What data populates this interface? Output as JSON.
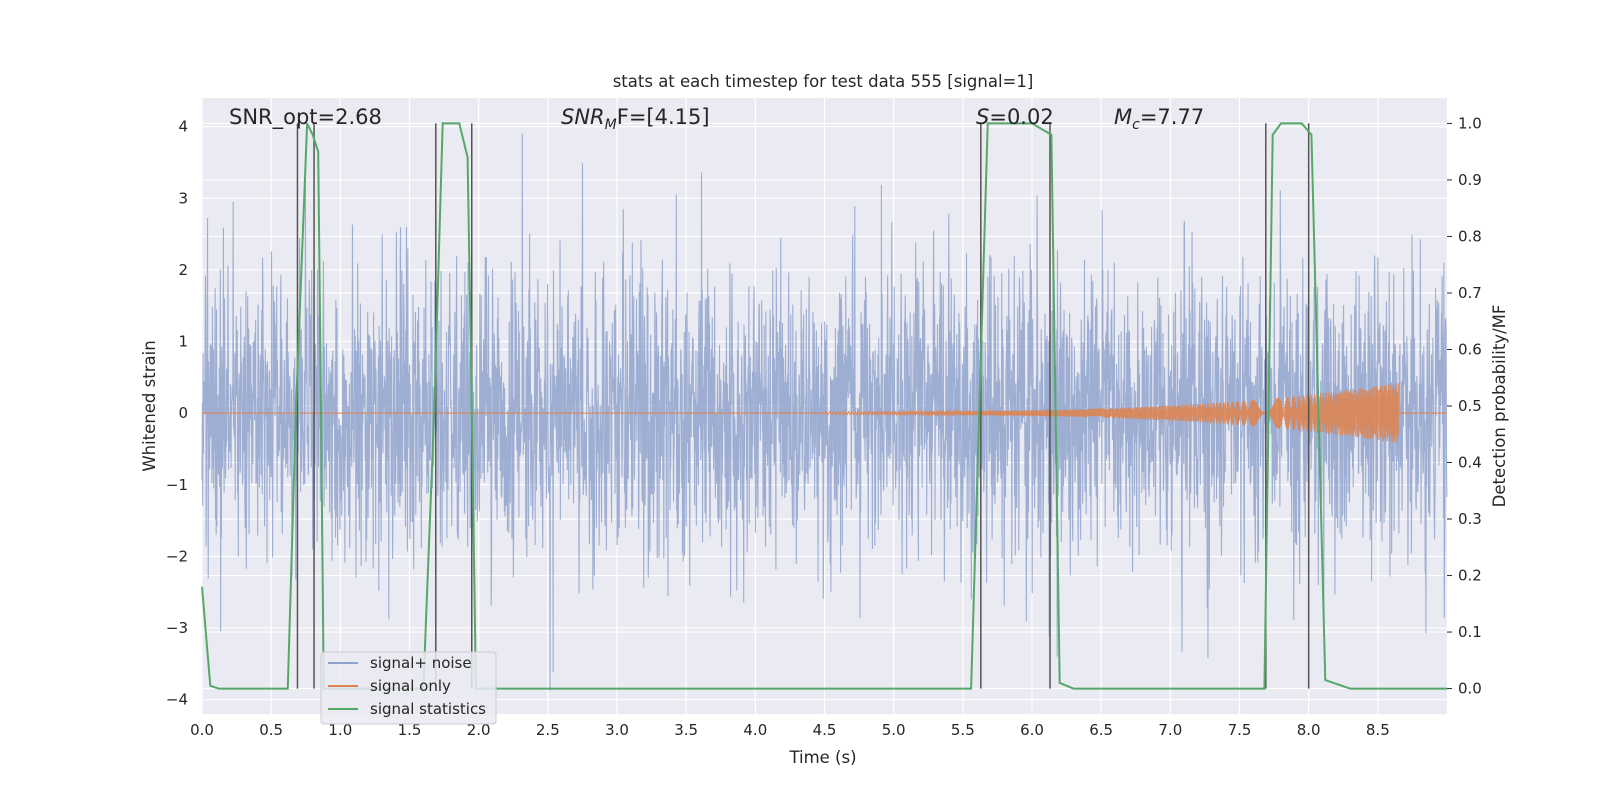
{
  "chart_data": {
    "type": "line",
    "title": "stats at each timestep for test data 555 [signal=1]",
    "xlabel": "Time (s)",
    "ylabel": "Whitened strain",
    "ylabel_right": "Detection probability/MF",
    "xlim": [
      0.0,
      9.0
    ],
    "ylim": [
      -4.2,
      4.4
    ],
    "ylim_right": [
      -0.045,
      1.045
    ],
    "x_ticks": [
      "0.0",
      "0.5",
      "1.0",
      "1.5",
      "2.0",
      "2.5",
      "3.0",
      "3.5",
      "4.0",
      "4.5",
      "5.0",
      "5.5",
      "6.0",
      "6.5",
      "7.0",
      "7.5",
      "8.0",
      "8.5"
    ],
    "y_ticks": [
      "4",
      "3",
      "2",
      "1",
      "0",
      "−1",
      "−2",
      "−3",
      "−4"
    ],
    "y_ticks_right": [
      "1.0",
      "0.9",
      "0.8",
      "0.7",
      "0.6",
      "0.5",
      "0.4",
      "0.3",
      "0.2",
      "0.1",
      "0.0"
    ],
    "grid": true,
    "legend_position": "lower-left",
    "annotations": {
      "snr_opt": "SNR_opt=2.68",
      "snr_mf_sym": "SNR",
      "snr_mf_sub": "M",
      "snr_mf_rest": "F=[4.15]",
      "s_sym": "S",
      "s_rest": "=0.02",
      "mc_sym": "M",
      "mc_sub": "c",
      "mc_rest": "=7.77"
    },
    "series": [
      {
        "name": "signal+ noise",
        "color": "#8fa3cc",
        "style": "dense noise, roughly Gaussian, amplitude within about ±2.5 with spikes to ±3.8",
        "sigma": 1.0,
        "x_range": [
          0.0,
          9.0
        ]
      },
      {
        "name": "signal only",
        "color": "#dd8452",
        "style": "chirp: flat near 0 until about 4.5 s, growing oscillation peaking at about 8.65 s (amplitude ~0.4), then zero",
        "chirp_start": 4.5,
        "merger_time": 8.65,
        "peak_amplitude": 0.4
      },
      {
        "name": "signal statistics",
        "color": "#55a868",
        "axis": "right",
        "x": [
          0.0,
          0.06,
          0.12,
          0.3,
          0.5,
          0.62,
          0.68,
          0.76,
          0.8,
          0.84,
          0.86,
          0.88,
          1.0,
          1.2,
          1.4,
          1.6,
          1.68,
          1.74,
          1.8,
          1.86,
          1.92,
          1.95,
          1.98,
          2.02,
          2.2,
          3.0,
          4.0,
          5.0,
          5.5,
          5.56,
          5.62,
          5.68,
          5.75,
          6.0,
          6.14,
          6.2,
          6.3,
          6.5,
          7.0,
          7.5,
          7.68,
          7.74,
          7.8,
          7.95,
          8.02,
          8.07,
          8.12,
          8.3,
          8.5,
          9.0
        ],
        "y": [
          0.18,
          0.005,
          0.0,
          0.0,
          0.0,
          0.0,
          0.5,
          1.0,
          0.98,
          0.95,
          0.5,
          0.0,
          0.0,
          0.0,
          0.0,
          0.0,
          0.5,
          1.0,
          1.0,
          1.0,
          0.94,
          0.5,
          0.0,
          0.0,
          0.0,
          0.0,
          0.0,
          0.0,
          0.0,
          0.0,
          0.5,
          1.0,
          1.0,
          1.0,
          0.98,
          0.01,
          0.0,
          0.0,
          0.0,
          0.0,
          0.0,
          0.98,
          1.0,
          1.0,
          0.98,
          0.5,
          0.015,
          0.0,
          0.0,
          0.0
        ]
      }
    ],
    "vertical_markers": {
      "color": "#555555",
      "x": [
        0.69,
        0.81,
        1.69,
        1.95,
        5.63,
        6.13,
        7.69,
        8.0
      ]
    }
  }
}
